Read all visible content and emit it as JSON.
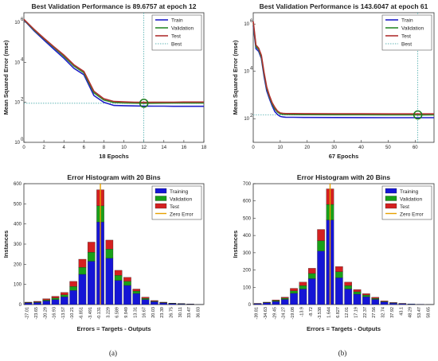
{
  "captions": {
    "a": "(a)",
    "b": "(b)"
  },
  "chart_data": [
    {
      "type": "line",
      "title": "Best Validation Performance is 89.6757 at epoch 12",
      "xlabel": "18 Epochs",
      "ylabel": "Mean Squared Error  (mse)",
      "yscale": "log",
      "xlim": [
        0,
        18
      ],
      "ylim": [
        1,
        3000000
      ],
      "xticks": [
        0,
        2,
        4,
        6,
        8,
        10,
        12,
        14,
        16,
        18
      ],
      "yticks": [
        {
          "label": "10",
          "exp": "0",
          "value": 1
        },
        {
          "label": "10",
          "exp": "2",
          "value": 100
        },
        {
          "label": "10",
          "exp": "4",
          "value": 10000
        },
        {
          "label": "10",
          "exp": "6",
          "value": 1000000
        }
      ],
      "best_epoch": 12,
      "best_value": 89.6757,
      "legend": [
        "Train",
        "Validation",
        "Test",
        "Best"
      ],
      "legend_position": "top-right",
      "colors": {
        "train": "#1f1fc8",
        "validation": "#2a8a2a",
        "test": "#b03030",
        "best": "#2e9e9e"
      },
      "series": [
        {
          "name": "Train",
          "x": [
            0,
            1,
            2,
            3,
            4,
            5,
            6,
            7,
            8,
            9,
            10,
            11,
            12,
            13,
            14,
            15,
            16,
            17,
            18
          ],
          "values": [
            1300000,
            380000,
            130000,
            45000,
            16000,
            5000,
            2400,
            220,
            100,
            70,
            68,
            66,
            65,
            64,
            64,
            63,
            63,
            63,
            63
          ]
        },
        {
          "name": "Validation",
          "x": [
            0,
            1,
            2,
            3,
            4,
            5,
            6,
            7,
            8,
            9,
            10,
            11,
            12,
            13,
            14,
            15,
            16,
            17,
            18
          ],
          "values": [
            1350000,
            420000,
            150000,
            55000,
            20000,
            6500,
            3000,
            300,
            130,
            97,
            93,
            91,
            89.6757,
            90,
            91,
            92,
            92,
            92,
            92
          ]
        },
        {
          "name": "Test",
          "x": [
            0,
            1,
            2,
            3,
            4,
            5,
            6,
            7,
            8,
            9,
            10,
            11,
            12,
            13,
            14,
            15,
            16,
            17,
            18
          ],
          "values": [
            1400000,
            450000,
            160000,
            60000,
            23000,
            7500,
            3500,
            360,
            150,
            110,
            105,
            102,
            100,
            101,
            102,
            102,
            103,
            103,
            103
          ]
        }
      ]
    },
    {
      "type": "line",
      "title": "Best Validation Performance is 143.6047 at epoch 61",
      "xlabel": "67 Epochs",
      "ylabel": "Mean Squared Error  (mse)",
      "yscale": "log",
      "xlim": [
        0,
        67
      ],
      "ylim": [
        10,
        3000000
      ],
      "xticks": [
        0,
        10,
        20,
        30,
        40,
        50,
        60
      ],
      "yticks": [
        {
          "label": "10",
          "exp": "2",
          "value": 100
        },
        {
          "label": "10",
          "exp": "4",
          "value": 10000
        },
        {
          "label": "10",
          "exp": "6",
          "value": 1000000
        }
      ],
      "best_epoch": 61,
      "best_value": 143.6047,
      "legend": [
        "Train",
        "Validation",
        "Test",
        "Best"
      ],
      "legend_position": "top-right",
      "colors": {
        "train": "#1f1fc8",
        "validation": "#2a8a2a",
        "test": "#b03030",
        "best": "#2e9e9e"
      },
      "series": [
        {
          "name": "Train",
          "x": [
            0,
            1,
            2,
            3,
            4,
            5,
            6,
            7,
            8,
            9,
            10,
            11,
            12,
            15,
            20,
            30,
            40,
            50,
            60,
            67
          ],
          "values": [
            900000,
            90000,
            70000,
            35000,
            6000,
            1500,
            700,
            350,
            200,
            150,
            125,
            118,
            115,
            114,
            113,
            112,
            111,
            110,
            110,
            110
          ]
        },
        {
          "name": "Validation",
          "x": [
            0,
            1,
            2,
            3,
            4,
            5,
            6,
            7,
            8,
            9,
            10,
            11,
            12,
            15,
            20,
            30,
            40,
            50,
            60,
            61,
            67
          ],
          "values": [
            1100000,
            110000,
            85000,
            40000,
            7500,
            1900,
            850,
            420,
            260,
            190,
            160,
            152,
            150,
            149,
            148,
            147,
            146,
            145,
            144,
            143.6047,
            144
          ]
        },
        {
          "name": "Test",
          "x": [
            0,
            1,
            2,
            3,
            4,
            5,
            6,
            7,
            8,
            9,
            10,
            11,
            12,
            15,
            20,
            30,
            40,
            50,
            60,
            67
          ],
          "values": [
            1300000,
            130000,
            95000,
            48000,
            9000,
            2200,
            950,
            480,
            300,
            210,
            175,
            168,
            165,
            164,
            163,
            162,
            161,
            160,
            159,
            159
          ]
        }
      ]
    },
    {
      "type": "bar",
      "stacked": true,
      "title": "Error Histogram with 20 Bins",
      "xlabel": "Errors = Targets - Outputs",
      "ylabel": "Instances",
      "ylim": [
        0,
        600
      ],
      "yticks": [
        0,
        100,
        200,
        300,
        400,
        500,
        600
      ],
      "categories": [
        "-27.01",
        "-23.65",
        "-20.29",
        "-16.93",
        "-13.57",
        "-10.21",
        "-6.851",
        "-3.491",
        "-0.131",
        "3.229",
        "6.589",
        "9.949",
        "13.31",
        "16.67",
        "20.03",
        "23.39",
        "26.75",
        "30.11",
        "33.47",
        "36.83"
      ],
      "zero_error_index": 8,
      "legend": [
        "Training",
        "Validation",
        "Test",
        "Zero Error"
      ],
      "legend_position": "top-right",
      "colors": {
        "training": "#1515d6",
        "validation": "#18a018",
        "test": "#d42020",
        "zero_error": "#e8a000"
      },
      "series": [
        {
          "name": "Training",
          "values": [
            8,
            10,
            18,
            25,
            38,
            70,
            150,
            215,
            410,
            230,
            120,
            95,
            55,
            25,
            14,
            8,
            5,
            3,
            2,
            1
          ]
        },
        {
          "name": "Validation",
          "values": [
            2,
            3,
            5,
            8,
            10,
            20,
            35,
            45,
            80,
            45,
            25,
            20,
            12,
            6,
            3,
            2,
            1,
            1,
            0,
            0
          ]
        },
        {
          "name": "Test",
          "values": [
            2,
            3,
            6,
            8,
            12,
            25,
            40,
            50,
            80,
            45,
            25,
            20,
            10,
            6,
            3,
            2,
            1,
            1,
            1,
            0
          ]
        }
      ]
    },
    {
      "type": "bar",
      "stacked": true,
      "title": "Error Histogram with 20 Bins",
      "xlabel": "Errors = Targets - Outputs",
      "ylabel": "Instances",
      "ylim": [
        0,
        700
      ],
      "yticks": [
        0,
        100,
        200,
        300,
        400,
        500,
        600,
        700
      ],
      "categories": [
        "-39.81",
        "-34.63",
        "-29.45",
        "-24.27",
        "-19.08",
        "-13.9",
        "-8.72",
        "-3.538",
        "1.644",
        "6.827",
        "12.01",
        "17.19",
        "22.37",
        "27.56",
        "32.74",
        "37.92",
        "43.1",
        "48.29",
        "53.47",
        "58.65"
      ],
      "zero_error_index": 8,
      "legend": [
        "Training",
        "Validation",
        "Test",
        "Zero Error"
      ],
      "legend_position": "top-right",
      "colors": {
        "training": "#1515d6",
        "validation": "#18a018",
        "test": "#d42020",
        "zero_error": "#e8a000"
      },
      "series": [
        {
          "name": "Training",
          "values": [
            5,
            10,
            18,
            30,
            65,
            90,
            150,
            310,
            490,
            155,
            90,
            60,
            45,
            30,
            15,
            8,
            5,
            3,
            2,
            1
          ]
        },
        {
          "name": "Validation",
          "values": [
            1,
            2,
            5,
            7,
            14,
            20,
            30,
            60,
            90,
            35,
            20,
            14,
            10,
            6,
            3,
            2,
            1,
            1,
            0,
            0
          ]
        },
        {
          "name": "Test",
          "values": [
            1,
            2,
            4,
            6,
            15,
            20,
            30,
            65,
            90,
            30,
            20,
            13,
            8,
            6,
            3,
            2,
            1,
            0,
            0,
            0
          ]
        }
      ]
    }
  ]
}
